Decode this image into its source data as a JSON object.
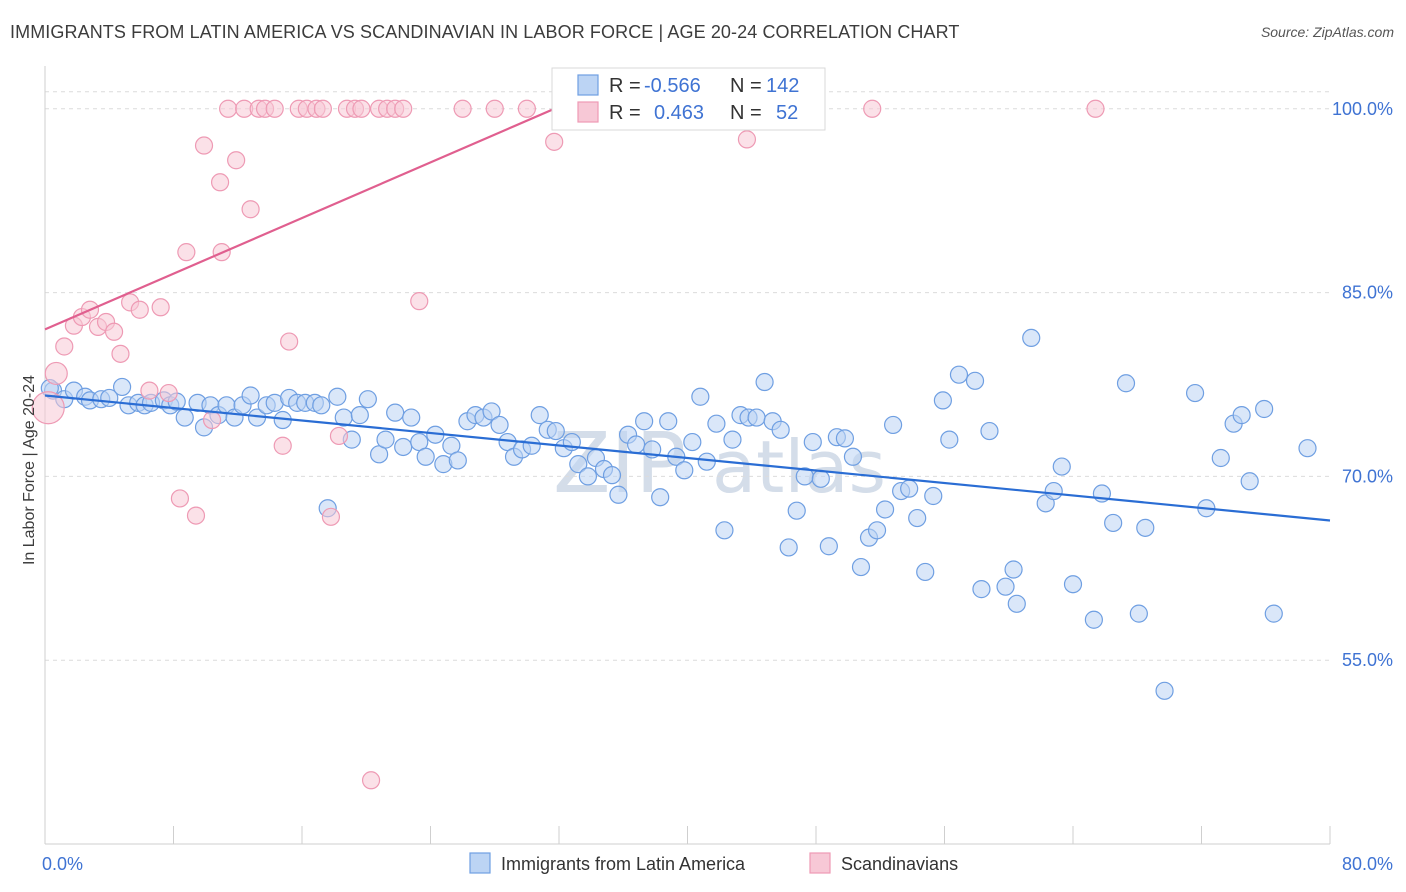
{
  "header": {
    "title": "IMMIGRANTS FROM LATIN AMERICA VS SCANDINAVIAN IN LABOR FORCE | AGE 20-24 CORRELATION CHART",
    "source": "Source: ZipAtlas.com"
  },
  "watermark": {
    "zip": "ZIP",
    "atlas": "atlas"
  },
  "chart_data": {
    "type": "scatter",
    "xlabel": "",
    "ylabel": "In Labor Force | Age 20-24",
    "xlim": [
      0,
      80
    ],
    "ylim": [
      40,
      103
    ],
    "x_tick_labels": [
      {
        "value": 0,
        "label": "0.0%"
      },
      {
        "value": 80,
        "label": "80.0%"
      }
    ],
    "y_tick_labels": [
      {
        "value": 55,
        "label": "55.0%"
      },
      {
        "value": 70,
        "label": "70.0%"
      },
      {
        "value": 85,
        "label": "85.0%"
      },
      {
        "value": 100,
        "label": "100.0%"
      }
    ],
    "grid": "horizontal dashed",
    "legend_position": "bottom-center",
    "stats_box": [
      {
        "r_label": "R =",
        "r_value": "-0.566",
        "n_label": "N =",
        "n_value": "142"
      },
      {
        "r_label": "R =",
        "r_value": "0.463",
        "n_label": "N =",
        "n_value": "52"
      }
    ],
    "series": [
      {
        "name": "Immigrants from Latin America",
        "color": "#6f9fe2",
        "fill": "#bcd4f4",
        "line_color": "#2a6dd4",
        "trend": {
          "x": [
            0,
            80
          ],
          "y": [
            76.6,
            66.4
          ]
        },
        "points": [
          [
            0.5,
            77
          ],
          [
            1.2,
            76.3
          ],
          [
            1.8,
            77
          ],
          [
            2.5,
            76.5
          ],
          [
            2.8,
            76.2
          ],
          [
            3.5,
            76.3
          ],
          [
            4,
            76.4
          ],
          [
            4.8,
            77.3
          ],
          [
            5.2,
            75.8
          ],
          [
            5.8,
            76
          ],
          [
            6.2,
            75.8
          ],
          [
            6.6,
            76
          ],
          [
            7.4,
            76.2
          ],
          [
            7.8,
            75.8
          ],
          [
            8.2,
            76.1
          ],
          [
            8.7,
            74.8
          ],
          [
            9.5,
            76
          ],
          [
            9.9,
            74
          ],
          [
            10.3,
            75.8
          ],
          [
            10.8,
            75
          ],
          [
            11.3,
            75.8
          ],
          [
            11.8,
            74.8
          ],
          [
            12.3,
            75.8
          ],
          [
            12.8,
            76.6
          ],
          [
            13.2,
            74.8
          ],
          [
            13.8,
            75.8
          ],
          [
            14.3,
            76
          ],
          [
            14.8,
            74.6
          ],
          [
            15.2,
            76.4
          ],
          [
            15.7,
            76
          ],
          [
            16.2,
            76
          ],
          [
            16.8,
            76
          ],
          [
            17.2,
            75.8
          ],
          [
            17.6,
            67.4
          ],
          [
            18.2,
            76.5
          ],
          [
            18.6,
            74.8
          ],
          [
            19.1,
            73
          ],
          [
            19.6,
            75
          ],
          [
            20.1,
            76.3
          ],
          [
            20.8,
            71.8
          ],
          [
            21.2,
            73
          ],
          [
            21.8,
            75.2
          ],
          [
            22.3,
            72.4
          ],
          [
            22.8,
            74.8
          ],
          [
            23.3,
            72.8
          ],
          [
            23.7,
            71.6
          ],
          [
            24.3,
            73.4
          ],
          [
            24.8,
            71
          ],
          [
            25.3,
            72.5
          ],
          [
            25.7,
            71.3
          ],
          [
            26.3,
            74.5
          ],
          [
            26.8,
            75
          ],
          [
            27.3,
            74.8
          ],
          [
            27.8,
            75.3
          ],
          [
            28.3,
            74.2
          ],
          [
            28.8,
            72.8
          ],
          [
            29.2,
            71.6
          ],
          [
            29.7,
            72.2
          ],
          [
            30.3,
            72.5
          ],
          [
            30.8,
            75
          ],
          [
            31.3,
            73.8
          ],
          [
            31.8,
            73.7
          ],
          [
            32.3,
            72.3
          ],
          [
            32.8,
            72.8
          ],
          [
            33.2,
            71
          ],
          [
            33.8,
            70
          ],
          [
            34.3,
            71.5
          ],
          [
            34.8,
            70.6
          ],
          [
            35.3,
            70.1
          ],
          [
            35.7,
            68.5
          ],
          [
            36.3,
            73.4
          ],
          [
            36.8,
            72.6
          ],
          [
            37.3,
            74.5
          ],
          [
            37.8,
            72.2
          ],
          [
            38.3,
            68.3
          ],
          [
            38.8,
            74.5
          ],
          [
            39.3,
            71.6
          ],
          [
            39.8,
            70.5
          ],
          [
            40.3,
            72.8
          ],
          [
            40.8,
            76.5
          ],
          [
            41.2,
            71.2
          ],
          [
            41.8,
            74.3
          ],
          [
            42.3,
            65.6
          ],
          [
            42.8,
            73
          ],
          [
            43.3,
            75
          ],
          [
            43.8,
            74.8
          ],
          [
            44.3,
            74.8
          ],
          [
            44.8,
            77.7
          ],
          [
            45.3,
            74.5
          ],
          [
            45.8,
            73.8
          ],
          [
            46.3,
            64.2
          ],
          [
            46.8,
            67.2
          ],
          [
            47.3,
            70
          ],
          [
            47.8,
            72.8
          ],
          [
            48.3,
            69.8
          ],
          [
            48.8,
            64.3
          ],
          [
            49.3,
            73.2
          ],
          [
            49.8,
            73.1
          ],
          [
            50.3,
            71.6
          ],
          [
            50.8,
            62.6
          ],
          [
            51.3,
            65
          ],
          [
            51.8,
            65.6
          ],
          [
            52.3,
            67.3
          ],
          [
            52.8,
            74.2
          ],
          [
            53.3,
            68.8
          ],
          [
            53.8,
            69
          ],
          [
            54.3,
            66.6
          ],
          [
            54.8,
            62.2
          ],
          [
            55.3,
            68.4
          ],
          [
            55.9,
            76.2
          ],
          [
            56.3,
            73
          ],
          [
            56.9,
            78.3
          ],
          [
            57.9,
            77.8
          ],
          [
            58.3,
            60.8
          ],
          [
            58.8,
            73.7
          ],
          [
            59.8,
            61
          ],
          [
            60.3,
            62.4
          ],
          [
            60.5,
            59.6
          ],
          [
            61.4,
            81.3
          ],
          [
            62.3,
            67.8
          ],
          [
            62.8,
            68.8
          ],
          [
            63.3,
            70.8
          ],
          [
            64,
            61.2
          ],
          [
            65.3,
            58.3
          ],
          [
            65.8,
            68.6
          ],
          [
            66.5,
            66.2
          ],
          [
            67.3,
            77.6
          ],
          [
            68.1,
            58.8
          ],
          [
            68.5,
            65.8
          ],
          [
            69.7,
            52.5
          ],
          [
            71.6,
            76.8
          ],
          [
            72.3,
            67.4
          ],
          [
            73.2,
            71.5
          ],
          [
            74,
            74.3
          ],
          [
            74.5,
            75
          ],
          [
            75,
            69.6
          ],
          [
            75.9,
            75.5
          ],
          [
            76.5,
            58.8
          ],
          [
            78.6,
            72.3
          ],
          [
            0.3,
            77.2
          ]
        ]
      },
      {
        "name": "Scandinavians",
        "color": "#ee9ab4",
        "fill": "#f7c8d6",
        "line_color": "#e05f8f",
        "trend": {
          "x": [
            0,
            37
          ],
          "y": [
            82,
            103
          ]
        },
        "points": [
          [
            0.2,
            75.6
          ],
          [
            0.7,
            78.4
          ],
          [
            1.2,
            80.6
          ],
          [
            1.8,
            82.3
          ],
          [
            2.3,
            83
          ],
          [
            2.8,
            83.6
          ],
          [
            3.3,
            82.2
          ],
          [
            3.8,
            82.6
          ],
          [
            4.3,
            81.8
          ],
          [
            4.7,
            80
          ],
          [
            5.3,
            84.2
          ],
          [
            5.9,
            83.6
          ],
          [
            6.5,
            77
          ],
          [
            7.2,
            83.8
          ],
          [
            7.7,
            76.8
          ],
          [
            8.4,
            68.2
          ],
          [
            8.8,
            88.3
          ],
          [
            9.4,
            66.8
          ],
          [
            9.9,
            97
          ],
          [
            10.4,
            74.6
          ],
          [
            10.9,
            94
          ],
          [
            11.4,
            100
          ],
          [
            11.9,
            95.8
          ],
          [
            12.4,
            100
          ],
          [
            12.8,
            91.8
          ],
          [
            13.3,
            100
          ],
          [
            13.7,
            100
          ],
          [
            14.3,
            100
          ],
          [
            14.8,
            72.5
          ],
          [
            15.2,
            81
          ],
          [
            15.8,
            100
          ],
          [
            16.3,
            100
          ],
          [
            16.9,
            100
          ],
          [
            17.3,
            100
          ],
          [
            17.8,
            66.7
          ],
          [
            18.3,
            73.3
          ],
          [
            18.8,
            100
          ],
          [
            19.3,
            100
          ],
          [
            19.7,
            100
          ],
          [
            20.3,
            45.2
          ],
          [
            20.8,
            100
          ],
          [
            21.3,
            100
          ],
          [
            21.8,
            100
          ],
          [
            22.3,
            100
          ],
          [
            23.3,
            84.3
          ],
          [
            26,
            100
          ],
          [
            28,
            100
          ],
          [
            30,
            100
          ],
          [
            31.7,
            97.3
          ],
          [
            32.3,
            100
          ],
          [
            43.7,
            97.5
          ],
          [
            43.2,
            100
          ],
          [
            47.5,
            100
          ],
          [
            51.5,
            100
          ],
          [
            65.4,
            100
          ],
          [
            11,
            88.3
          ]
        ]
      }
    ]
  }
}
